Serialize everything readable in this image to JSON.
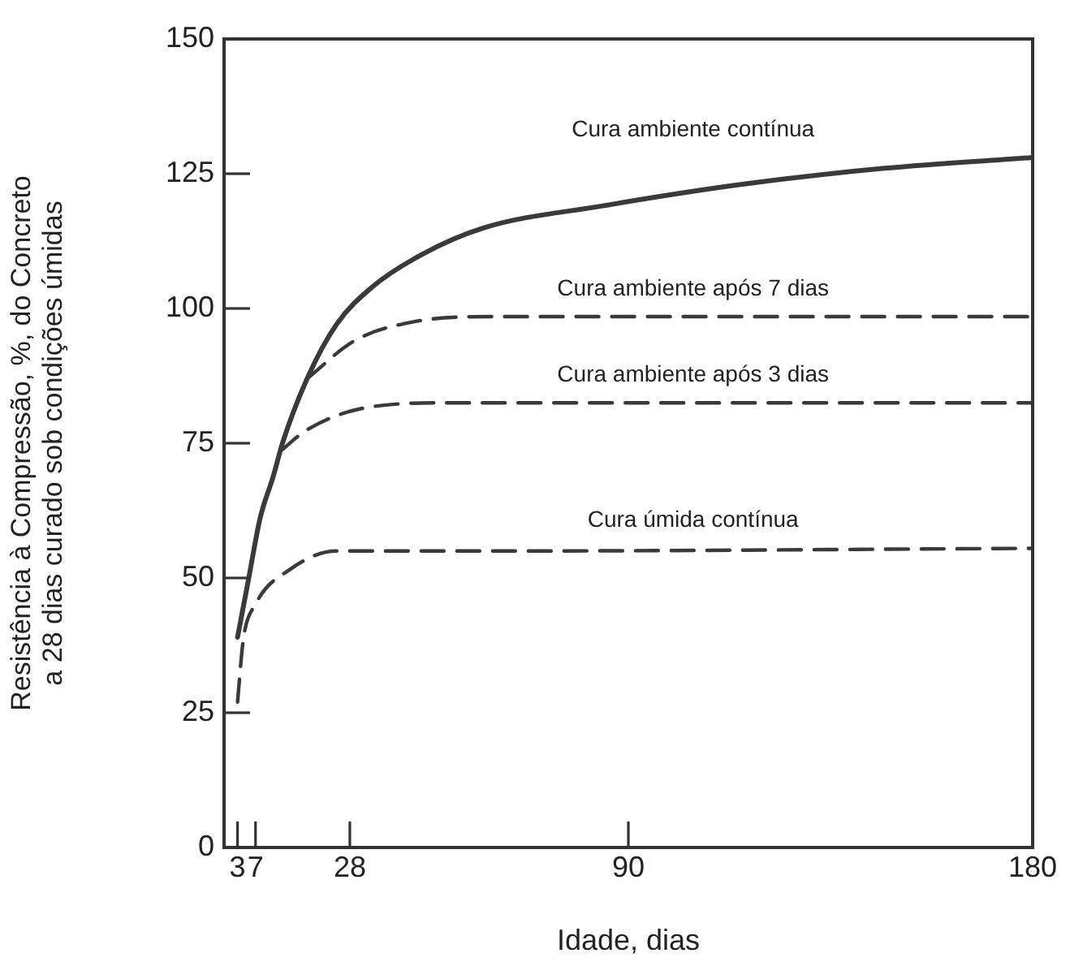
{
  "chart_data": {
    "type": "line",
    "xlabel": "Idade, dias",
    "ylabel": "Resistência à Compressão, %, do Concreto\na 28 dias curado sob condições úmidas",
    "xlim": [
      0,
      180
    ],
    "xticks": [
      3,
      7,
      28,
      90,
      180
    ],
    "ylim": [
      0,
      150
    ],
    "yticks": [
      0,
      25,
      50,
      75,
      100,
      125,
      150
    ],
    "grid": false,
    "legend": false,
    "marker": "none",
    "series": [
      {
        "name": "Cura ambiente contínua",
        "color": "#3a3a3a",
        "line_style": "solid",
        "x": [
          3,
          5.5,
          8,
          11,
          13,
          18.5,
          25,
          33,
          44,
          58,
          84,
          115,
          147,
          180
        ],
        "values": [
          39,
          50,
          61,
          69,
          75,
          87,
          97,
          104,
          110,
          115,
          119,
          123,
          126,
          128
        ]
      },
      {
        "name": "Cura ambiente após 7 dias",
        "color": "#3a3a3a",
        "line_style": "dashed",
        "x": [
          18.5,
          29,
          42,
          60,
          180
        ],
        "values": [
          87,
          94,
          97.5,
          98.5,
          98.5
        ]
      },
      {
        "name": "Cura ambiente após 3 dias",
        "color": "#3a3a3a",
        "line_style": "dashed",
        "x": [
          12.5,
          18.5,
          31,
          50,
          180
        ],
        "values": [
          73.5,
          77.5,
          81.5,
          82.5,
          82.5
        ]
      },
      {
        "name": "Cura úmida contínua",
        "color": "#3a3a3a",
        "line_style": "dashed",
        "x": [
          3,
          4.3,
          6.9,
          14.7,
          25,
          60,
          180
        ],
        "values": [
          27,
          38.7,
          45,
          51.6,
          55,
          55,
          55.5
        ]
      }
    ]
  }
}
